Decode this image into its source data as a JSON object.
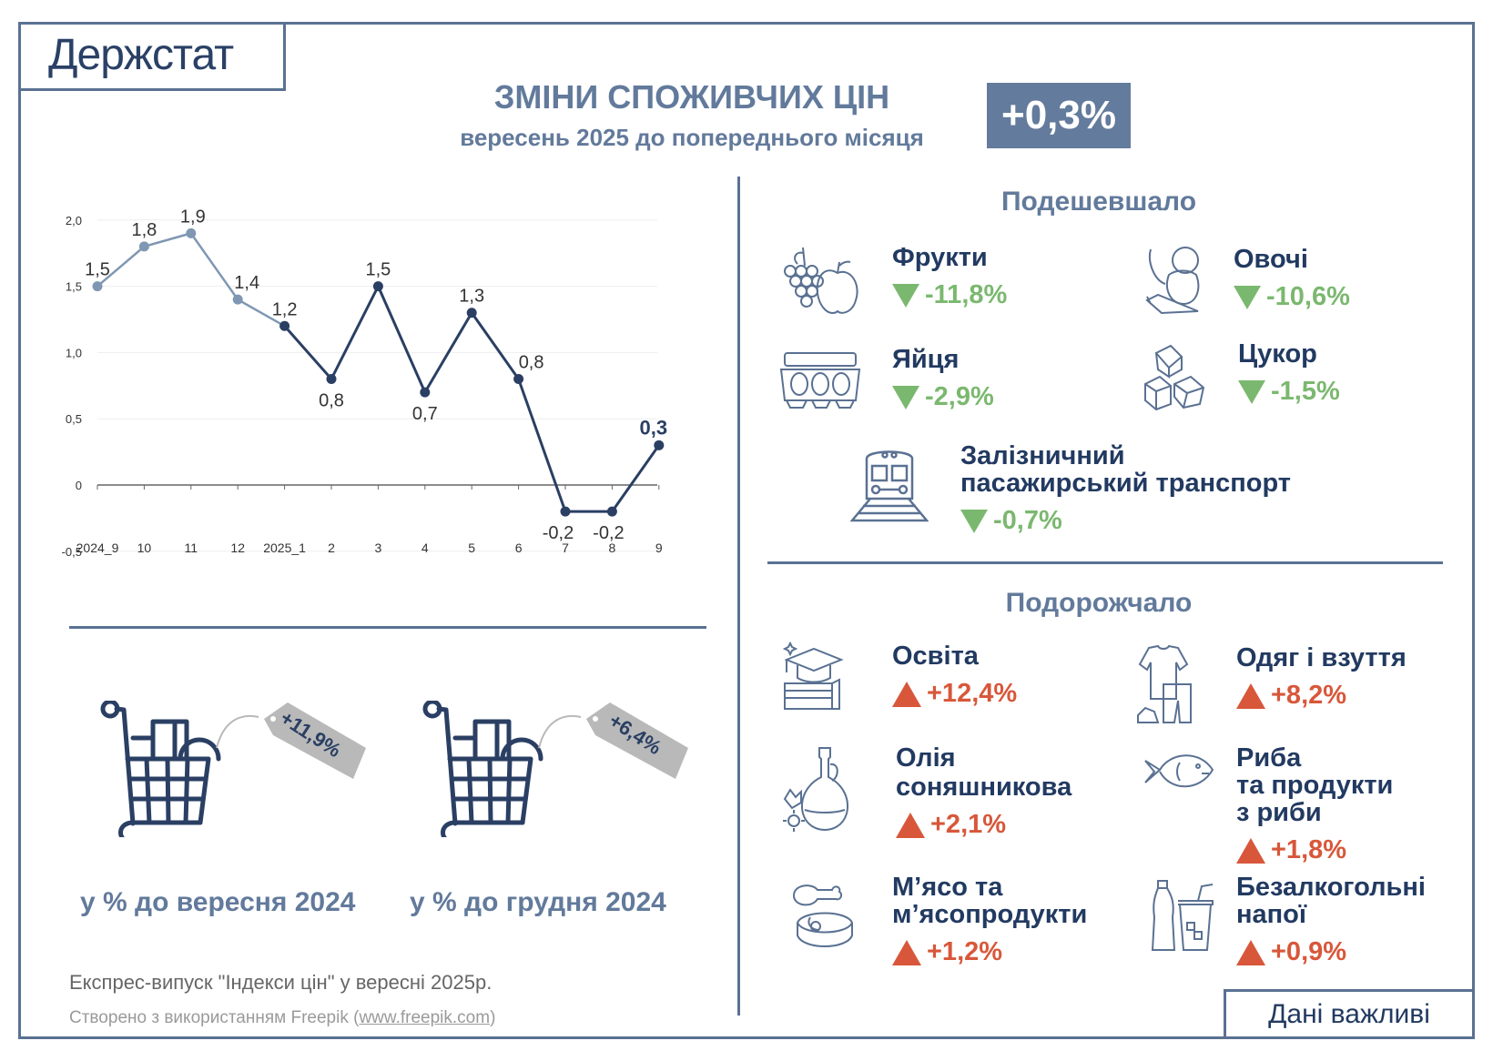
{
  "header": {
    "logo": "Держстат",
    "title": "ЗМІНИ СПОЖИВЧИХ ЦІН",
    "subtitle": "вересень 2025 до попереднього місяця",
    "headline_value": "+0,3%"
  },
  "colors": {
    "frame": "#5a7192",
    "title": "#627a9b",
    "dark_navy": "#223a61",
    "line_light": "#7f97b3",
    "line_dark": "#2a3f63",
    "decrease_green": "#7bb86f",
    "increase_red": "#d8573a",
    "price_tag_grey": "#b9b9b9"
  },
  "chart_data": {
    "type": "line",
    "title": "Зміни споживчих цін до попереднього місяця, %",
    "categories": [
      "2024_9",
      "10",
      "11",
      "12",
      "2025_1",
      "2",
      "3",
      "4",
      "5",
      "6",
      "7",
      "8",
      "9"
    ],
    "values": [
      1.5,
      1.8,
      1.9,
      1.4,
      1.2,
      0.8,
      1.5,
      0.7,
      1.3,
      0.8,
      -0.2,
      -0.2,
      0.3
    ],
    "value_labels": [
      "1,5",
      "1,8",
      "1,9",
      "1,4",
      "1,2",
      "0,8",
      "1,5",
      "0,7",
      "1,3",
      "0,8",
      "-0,2",
      "-0,2",
      "0,3"
    ],
    "series": [
      {
        "name": "2024",
        "values": [
          1.5,
          1.8,
          1.9,
          1.4,
          1.2
        ],
        "color": "#7f97b3"
      },
      {
        "name": "2025",
        "values": [
          1.2,
          0.8,
          1.5,
          0.7,
          1.3,
          0.8,
          -0.2,
          -0.2,
          0.3
        ],
        "color": "#2a3f63"
      }
    ],
    "yticks": [
      "2,0",
      "1,5",
      "1,0",
      "0,5",
      "0",
      "-0,5"
    ],
    "ylim": [
      -0.5,
      2.0
    ],
    "xlabel": "",
    "ylabel": "",
    "grid": true,
    "legend": "none"
  },
  "annual": {
    "items": [
      {
        "tag": "+11,9%",
        "caption": "у % до вересня 2024"
      },
      {
        "tag": "+6,4%",
        "caption": "у % до грудня 2024"
      }
    ]
  },
  "notes": {
    "express": "Експрес-випуск \"Індекси цін\" у вересні 2025р.",
    "credit_prefix": "Створено з використанням Freepik (",
    "credit_link": "www.freepik.com",
    "credit_suffix": ")"
  },
  "cheaper": {
    "title": "Подешевшало",
    "items": [
      {
        "name": "Фрукти",
        "value": "-11,8%",
        "icon": "fruit-icon"
      },
      {
        "name": "Овочі",
        "value": "-10,6%",
        "icon": "vegetables-icon"
      },
      {
        "name": "Яйця",
        "value": "-2,9%",
        "icon": "eggs-icon"
      },
      {
        "name": "Цукор",
        "value": "-1,5%",
        "icon": "sugar-cubes-icon"
      },
      {
        "name_line1": "Залізничний",
        "name_line2": "пасажирський транспорт",
        "value": "-0,7%",
        "icon": "train-icon"
      }
    ]
  },
  "pricier": {
    "title": "Подорожчало",
    "items": [
      {
        "name": "Освіта",
        "value": "+12,4%",
        "icon": "education-icon"
      },
      {
        "name": "Одяг і взуття",
        "value": "+8,2%",
        "icon": "clothing-icon"
      },
      {
        "name_line1": "Олія",
        "name_line2": "соняшникова",
        "value": "+2,1%",
        "icon": "oil-bottle-icon"
      },
      {
        "name_line1": "Риба",
        "name_line2": "та продукти",
        "name_line3": "з риби",
        "value": "+1,8%",
        "icon": "fish-icon"
      },
      {
        "name_line1": "М’ясо та",
        "name_line2": "м’ясопродукти",
        "value": "+1,2%",
        "icon": "meat-icon"
      },
      {
        "name_line1": "Безалкогольні",
        "name_line2": "напої",
        "value": "+0,9%",
        "icon": "soft-drinks-icon"
      }
    ]
  },
  "footer": {
    "label": "Дані важливі"
  }
}
